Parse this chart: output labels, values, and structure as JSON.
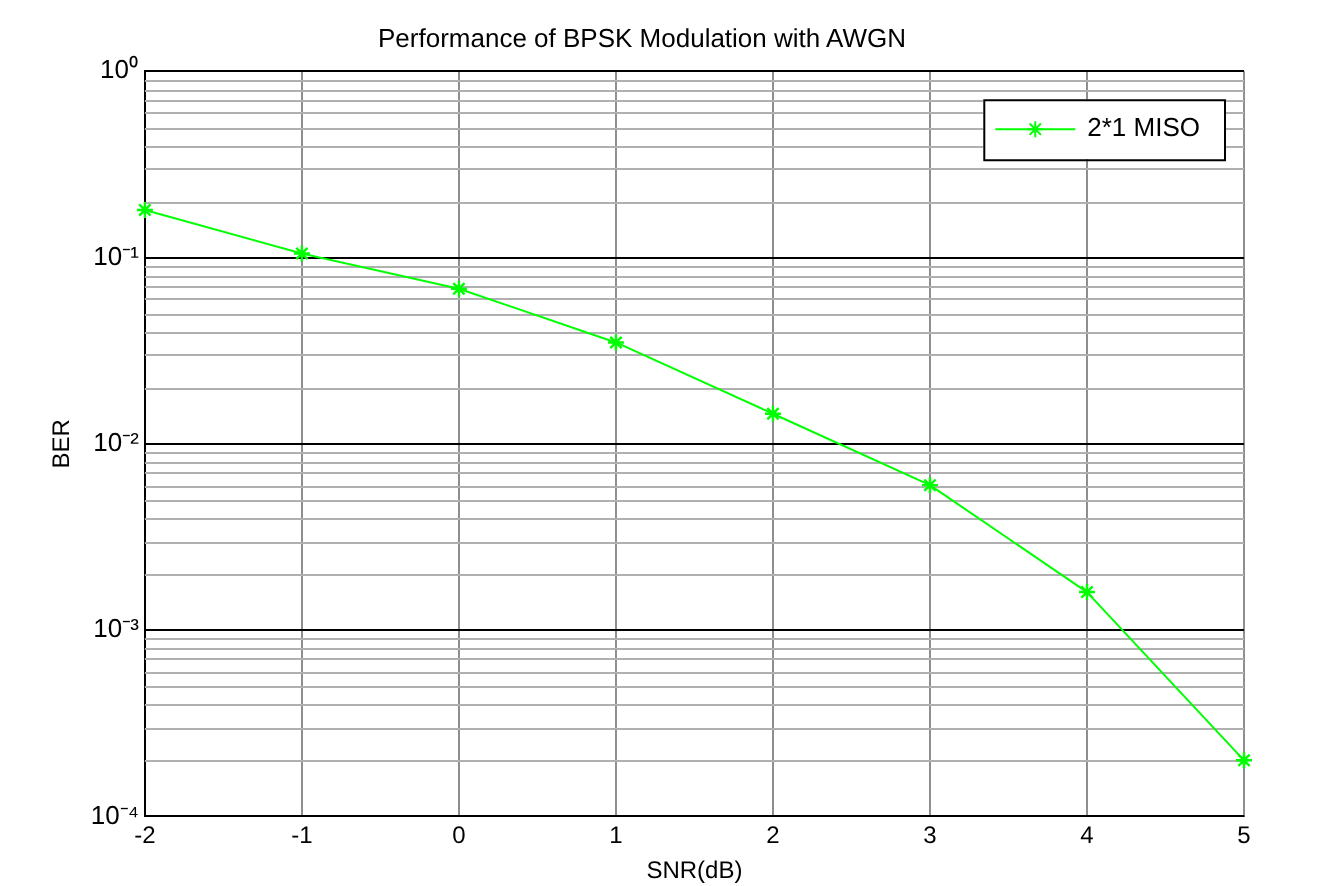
{
  "chart_data": {
    "type": "line",
    "title": "Performance of BPSK Modulation with AWGN",
    "xlabel": "SNR(dB)",
    "ylabel": "BER",
    "x": [
      -2,
      -1,
      0,
      1,
      2,
      3,
      4,
      5
    ],
    "series": [
      {
        "name": "2*1 MISO",
        "color": "#00ff00",
        "values": [
          0.18,
          0.105,
          0.068,
          0.035,
          0.0145,
          0.006,
          0.0016,
          0.0002
        ]
      }
    ],
    "xlim": [
      -2,
      5
    ],
    "xticks": [
      -2,
      -1,
      0,
      1,
      2,
      3,
      4,
      5
    ],
    "ylim": [
      0.0001,
      1
    ],
    "yticks": [
      {
        "value": 0.0001,
        "label": "10⁻⁴"
      },
      {
        "value": 0.001,
        "label": "10⁻³"
      },
      {
        "value": 0.01,
        "label": "10⁻²"
      },
      {
        "value": 0.1,
        "label": "10⁻¹"
      },
      {
        "value": 1,
        "label": "10⁰"
      }
    ],
    "log": "y",
    "grid": true,
    "legend": "top right",
    "marker": "cross",
    "line_style": "solid"
  }
}
